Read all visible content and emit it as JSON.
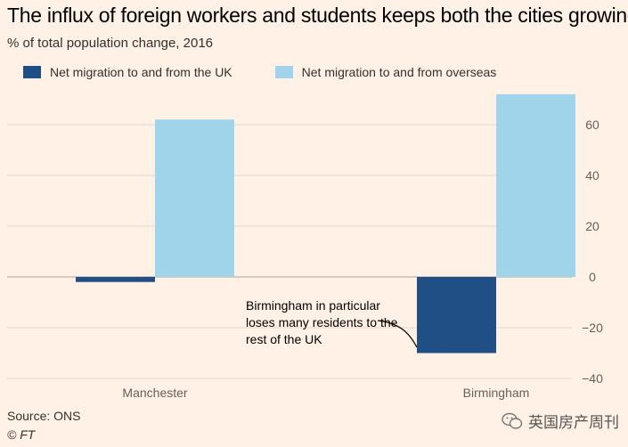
{
  "header": {
    "title": "The influx of foreign workers and students keeps both the cities growing",
    "subtitle": "% of total population change, 2016"
  },
  "footer": {
    "source": "Source: ONS",
    "copyright": "© FT",
    "watermark": "英国房产周刊"
  },
  "annotation": {
    "text": "Birmingham in particular loses many residents to the rest of the UK"
  },
  "colors": {
    "background": "#fff1e5",
    "uk_series": "#1f4f85",
    "overseas_series": "#9fd4ea",
    "grid": "#e4d8cf",
    "zero_line": "#c8bdb4",
    "axis_text": "#66605c"
  },
  "chart_data": {
    "type": "bar",
    "title": "The influx of foreign workers and students keeps both the cities growing",
    "subtitle": "% of total population change, 2016",
    "categories": [
      "Manchester",
      "Birmingham"
    ],
    "series": [
      {
        "name": "Net migration to and from the UK",
        "values": [
          -2,
          -30
        ]
      },
      {
        "name": "Net migration to and from overseas",
        "values": [
          62,
          72
        ]
      }
    ],
    "ylim": [
      -40,
      70
    ],
    "yticks": [
      60,
      40,
      20,
      0,
      -20,
      -40
    ],
    "xlabel": "",
    "ylabel": "",
    "grid": true,
    "legend": "top-left",
    "y_axis_position": "right"
  }
}
